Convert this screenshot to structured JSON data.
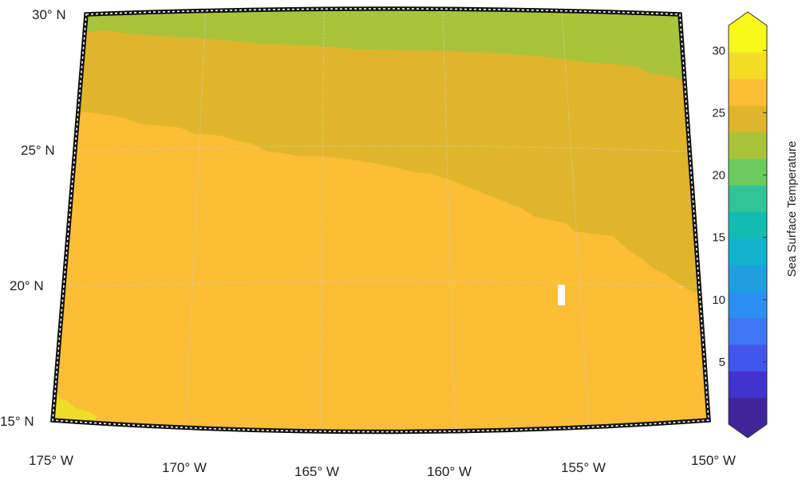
{
  "map": {
    "projection": "conic",
    "lon_range": [
      -175,
      -150
    ],
    "lat_range": [
      15,
      30
    ],
    "lat_labels": [
      "30° N",
      "25° N",
      "20° N",
      "15° N"
    ],
    "lon_labels": [
      "175° W",
      "170° W",
      "165° W",
      "160° W",
      "155° W",
      "150° W"
    ],
    "frame": "black-white dashed",
    "grid": true,
    "fill_colors": {
      "warm_band": "#fcbe36",
      "mid_band": "#e0b52b",
      "cool_band": "#a9c43a",
      "hot_patch": "#f0dc28",
      "missing": "#ffffff"
    }
  },
  "colorbar": {
    "title": "Sea Surface Temperature",
    "min": 0,
    "max": 32,
    "ticks": [
      "30",
      "25",
      "20",
      "15",
      "10",
      "5"
    ],
    "colors": [
      "#3f249b",
      "#4133ce",
      "#4356eb",
      "#3f76f5",
      "#2d8ef4",
      "#1f9fde",
      "#11b2cd",
      "#12bdb0",
      "#31c496",
      "#6ccb5d",
      "#a9c43a",
      "#e0b52b",
      "#fcbe36",
      "#f3dd24",
      "#f8f91a"
    ]
  }
}
